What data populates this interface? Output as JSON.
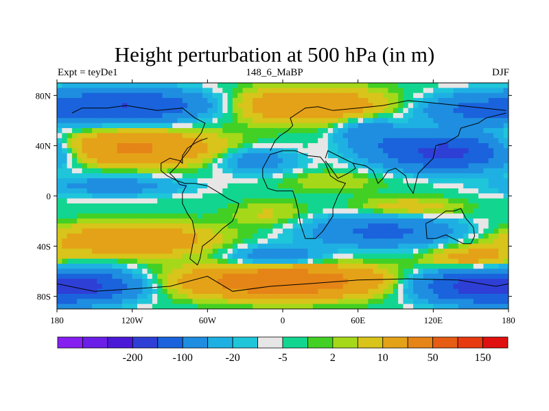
{
  "chart_data": {
    "type": "heatmap",
    "title": "Height perturbation at 500 hPa (in m)",
    "subtitle_left": "Expt = teyDe1",
    "subtitle_center": "148_6_MaBP",
    "subtitle_right": "DJF",
    "x_range": [
      -180,
      180
    ],
    "y_range": [
      -90,
      90
    ],
    "x_ticks": [
      {
        "value": -180,
        "label": "180"
      },
      {
        "value": -120,
        "label": "120W"
      },
      {
        "value": -60,
        "label": "60W"
      },
      {
        "value": 0,
        "label": "0"
      },
      {
        "value": 60,
        "label": "60E"
      },
      {
        "value": 120,
        "label": "120E"
      },
      {
        "value": 180,
        "label": "180"
      }
    ],
    "y_ticks": [
      {
        "value": 80,
        "label": "80N"
      },
      {
        "value": 40,
        "label": "40N"
      },
      {
        "value": 0,
        "label": "0"
      },
      {
        "value": -40,
        "label": "40S"
      },
      {
        "value": -80,
        "label": "80S"
      }
    ],
    "colorbar": {
      "colors": [
        "#8520f0",
        "#6a1ee8",
        "#4b18d8",
        "#2e3fd6",
        "#1a63dc",
        "#1f8ee0",
        "#1fb0e3",
        "#1fc6da",
        "#e6e6e6",
        "#12d690",
        "#43d025",
        "#a6d81a",
        "#d8c41a",
        "#e4a218",
        "#e58417",
        "#e55c12",
        "#e83a10",
        "#e01010"
      ],
      "labels": [
        {
          "after_index": 2,
          "text": "-200"
        },
        {
          "after_index": 4,
          "text": "-100"
        },
        {
          "after_index": 6,
          "text": "-20"
        },
        {
          "after_index": 8,
          "text": "-5"
        },
        {
          "after_index": 10,
          "text": "2"
        },
        {
          "after_index": 12,
          "text": "10"
        },
        {
          "after_index": 14,
          "text": "50"
        },
        {
          "after_index": 16,
          "text": "150"
        }
      ]
    },
    "anomaly_centers": [
      {
        "lon": -125,
        "lat": 72,
        "amp": -100,
        "rlon": 60,
        "rlat": 12
      },
      {
        "lon": 20,
        "lat": 72,
        "amp": 45,
        "rlon": 60,
        "rlat": 13
      },
      {
        "lon": 150,
        "lat": 68,
        "amp": -50,
        "rlon": 40,
        "rlat": 12
      },
      {
        "lon": -120,
        "lat": 38,
        "amp": 55,
        "rlon": 65,
        "rlat": 13
      },
      {
        "lon": 130,
        "lat": 35,
        "amp": -120,
        "rlon": 50,
        "rlat": 13
      },
      {
        "lon": 70,
        "lat": 50,
        "amp": -35,
        "rlon": 25,
        "rlat": 12
      },
      {
        "lon": -20,
        "lat": 28,
        "amp": -35,
        "rlon": 30,
        "rlat": 10
      },
      {
        "lon": -135,
        "lat": 8,
        "amp": -30,
        "rlon": 55,
        "rlat": 8
      },
      {
        "lon": 40,
        "lat": 12,
        "amp": 10,
        "rlon": 40,
        "rlat": 8
      },
      {
        "lon": 100,
        "lat": -10,
        "amp": 20,
        "rlon": 40,
        "rlat": 8
      },
      {
        "lon": -120,
        "lat": -35,
        "amp": 45,
        "rlon": 60,
        "rlat": 12
      },
      {
        "lon": 80,
        "lat": -28,
        "amp": -60,
        "rlon": 55,
        "rlat": 12
      },
      {
        "lon": -10,
        "lat": -15,
        "amp": 12,
        "rlon": 30,
        "rlat": 10
      },
      {
        "lon": -5,
        "lat": -48,
        "amp": -40,
        "rlon": 35,
        "rlat": 8
      },
      {
        "lon": 150,
        "lat": -50,
        "amp": 30,
        "rlon": 35,
        "rlat": 10
      },
      {
        "lon": -160,
        "lat": -72,
        "amp": -110,
        "rlon": 40,
        "rlat": 12
      },
      {
        "lon": 0,
        "lat": -68,
        "amp": 90,
        "rlon": 70,
        "rlat": 12
      },
      {
        "lon": 150,
        "lat": -72,
        "amp": -110,
        "rlon": 40,
        "rlat": 12
      }
    ],
    "coastlines": [
      [
        [
          -168,
          66
        ],
        [
          -160,
          70
        ],
        [
          -140,
          70
        ],
        [
          -125,
          72
        ],
        [
          -100,
          68
        ],
        [
          -80,
          70
        ],
        [
          -70,
          62
        ],
        [
          -62,
          58
        ],
        [
          -65,
          50
        ],
        [
          -70,
          44
        ],
        [
          -75,
          36
        ],
        [
          -80,
          30
        ],
        [
          -84,
          24
        ],
        [
          -90,
          18
        ],
        [
          -86,
          14
        ],
        [
          -82,
          9
        ],
        [
          -77,
          8
        ],
        [
          -80,
          2
        ],
        [
          -80,
          -6
        ],
        [
          -76,
          -14
        ],
        [
          -72,
          -20
        ],
        [
          -70,
          -30
        ],
        [
          -72,
          -40
        ],
        [
          -74,
          -50
        ],
        [
          -68,
          -55
        ],
        [
          -66,
          -50
        ],
        [
          -64,
          -40
        ],
        [
          -56,
          -34
        ],
        [
          -48,
          -26
        ],
        [
          -40,
          -20
        ],
        [
          -36,
          -10
        ],
        [
          -35,
          -6
        ],
        [
          -44,
          -2
        ],
        [
          -50,
          2
        ],
        [
          -60,
          8
        ],
        [
          -70,
          10
        ],
        [
          -78,
          10
        ],
        [
          -84,
          12
        ],
        [
          -92,
          16
        ],
        [
          -97,
          20
        ],
        [
          -97,
          26
        ],
        [
          -90,
          30
        ],
        [
          -82,
          28
        ],
        [
          -80,
          26
        ],
        [
          -80,
          32
        ],
        [
          -76,
          38
        ],
        [
          -70,
          42
        ],
        [
          -66,
          44
        ],
        [
          -60,
          46
        ]
      ],
      [
        [
          -10,
          36
        ],
        [
          -6,
          44
        ],
        [
          -2,
          48
        ],
        [
          4,
          52
        ],
        [
          8,
          56
        ],
        [
          6,
          62
        ],
        [
          12,
          66
        ],
        [
          18,
          70
        ],
        [
          28,
          71
        ],
        [
          40,
          68
        ],
        [
          60,
          70
        ],
        [
          80,
          72
        ],
        [
          100,
          76
        ],
        [
          120,
          74
        ],
        [
          140,
          72
        ],
        [
          160,
          70
        ],
        [
          178,
          68
        ]
      ],
      [
        [
          -16,
          15
        ],
        [
          -12,
          6
        ],
        [
          -5,
          4
        ],
        [
          8,
          4
        ],
        [
          10,
          -2
        ],
        [
          12,
          -10
        ],
        [
          14,
          -22
        ],
        [
          18,
          -34
        ],
        [
          26,
          -34
        ],
        [
          32,
          -28
        ],
        [
          40,
          -16
        ],
        [
          40,
          -10
        ],
        [
          44,
          0
        ],
        [
          50,
          10
        ],
        [
          44,
          12
        ],
        [
          38,
          16
        ],
        [
          34,
          26
        ],
        [
          30,
          31
        ],
        [
          20,
          32
        ],
        [
          10,
          36
        ],
        [
          0,
          36
        ],
        [
          -10,
          33
        ],
        [
          -16,
          22
        ],
        [
          -16,
          15
        ]
      ],
      [
        [
          34,
          28
        ],
        [
          44,
          14
        ],
        [
          52,
          18
        ],
        [
          58,
          22
        ],
        [
          56,
          26
        ],
        [
          48,
          30
        ],
        [
          40,
          34
        ],
        [
          36,
          36
        ],
        [
          34,
          30
        ]
      ],
      [
        [
          56,
          26
        ],
        [
          66,
          24
        ],
        [
          72,
          20
        ],
        [
          76,
          10
        ],
        [
          80,
          14
        ],
        [
          84,
          20
        ],
        [
          90,
          22
        ],
        [
          98,
          16
        ],
        [
          100,
          8
        ],
        [
          104,
          2
        ],
        [
          106,
          10
        ],
        [
          108,
          18
        ],
        [
          120,
          30
        ],
        [
          122,
          40
        ],
        [
          130,
          42
        ],
        [
          140,
          48
        ],
        [
          142,
          54
        ],
        [
          156,
          58
        ],
        [
          162,
          62
        ],
        [
          170,
          64
        ],
        [
          178,
          66
        ]
      ],
      [
        [
          114,
          -22
        ],
        [
          122,
          -18
        ],
        [
          130,
          -12
        ],
        [
          137,
          -12
        ],
        [
          142,
          -10
        ],
        [
          146,
          -18
        ],
        [
          152,
          -25
        ],
        [
          153,
          -32
        ],
        [
          150,
          -38
        ],
        [
          144,
          -38
        ],
        [
          136,
          -34
        ],
        [
          130,
          -31
        ],
        [
          122,
          -34
        ],
        [
          115,
          -34
        ],
        [
          114,
          -22
        ]
      ],
      [
        [
          -180,
          -70
        ],
        [
          -150,
          -76
        ],
        [
          -120,
          -74
        ],
        [
          -90,
          -72
        ],
        [
          -60,
          -64
        ],
        [
          -40,
          -76
        ],
        [
          -10,
          -72
        ],
        [
          20,
          -70
        ],
        [
          60,
          -67
        ],
        [
          100,
          -66
        ],
        [
          140,
          -67
        ],
        [
          170,
          -72
        ],
        [
          180,
          -70
        ]
      ]
    ]
  }
}
